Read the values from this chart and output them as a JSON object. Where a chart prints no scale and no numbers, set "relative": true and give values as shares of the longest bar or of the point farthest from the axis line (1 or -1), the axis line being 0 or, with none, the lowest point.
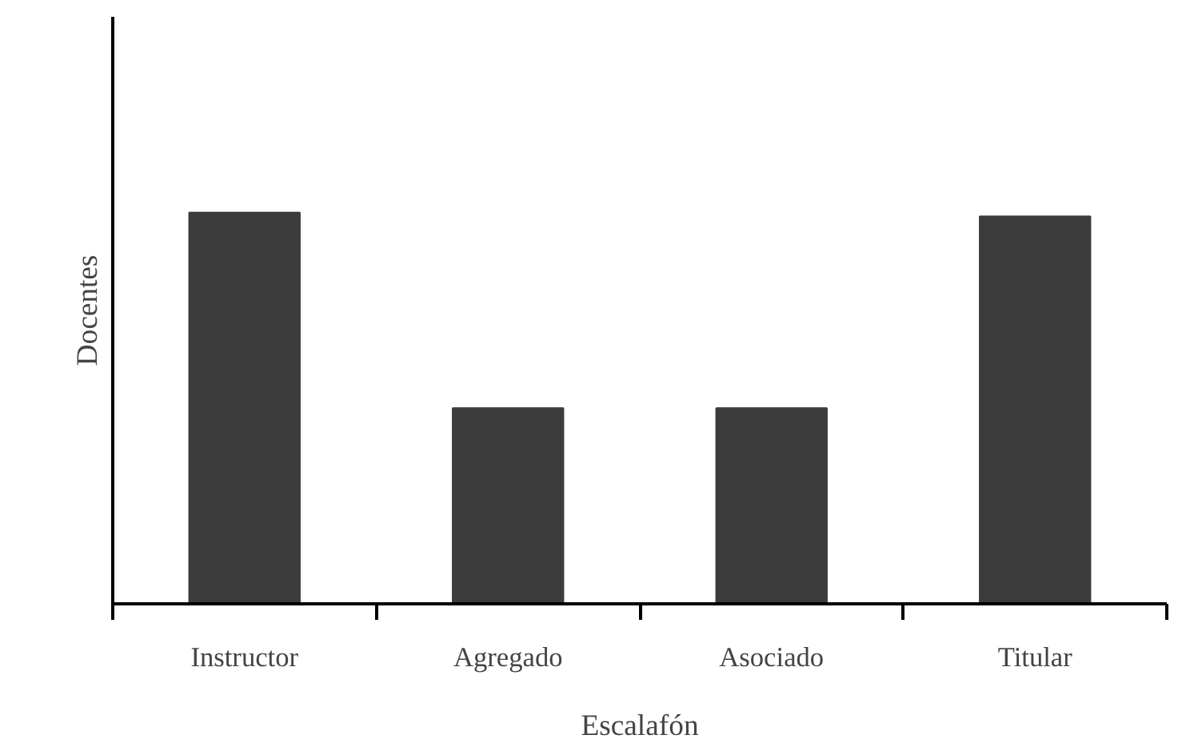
{
  "chart_data": {
    "type": "bar",
    "xlabel": "Escalafón",
    "ylabel": "Docentes",
    "categories": [
      "Instructor",
      "Agregado",
      "Asociado",
      "Titular"
    ],
    "values": [
      1,
      0.5,
      0.5,
      0.99
    ],
    "color": "#3c3c3c",
    "relative": true,
    "grid": false
  }
}
